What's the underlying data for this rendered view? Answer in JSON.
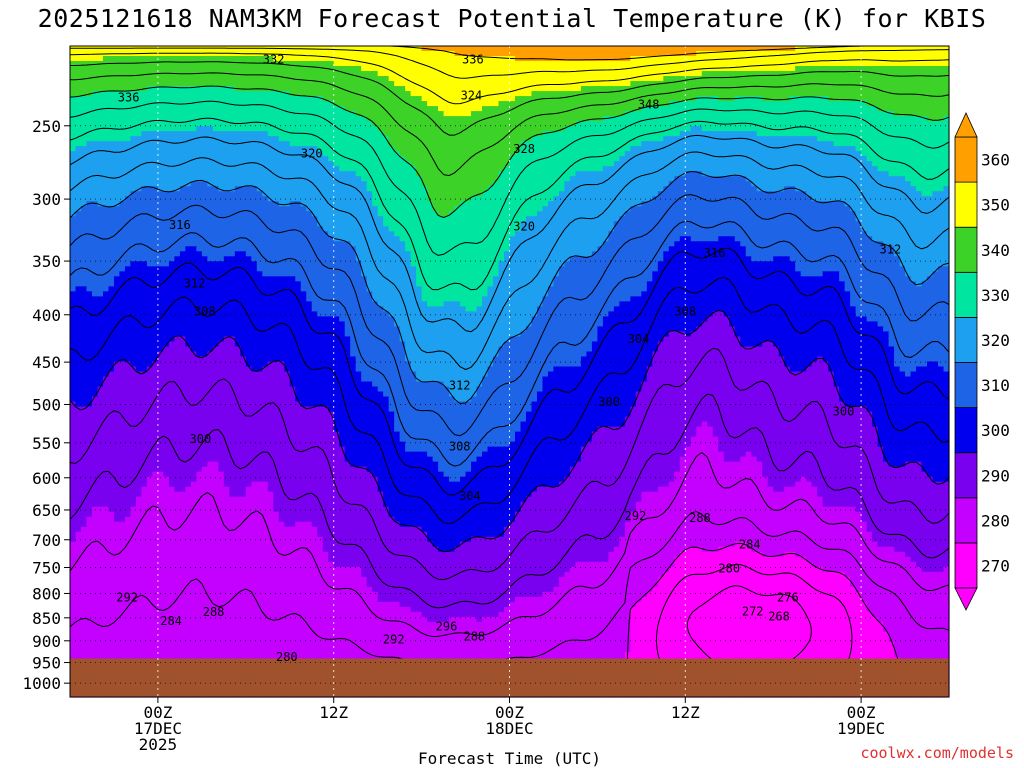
{
  "chart_data": {
    "type": "contour",
    "title": "2025121618 NAM3KM Forecast Potential Temperature (K) for KBIS",
    "xlabel": "Forecast Time (UTC)",
    "ylabel": "",
    "y_axis_pressure_hpa": [
      250,
      300,
      350,
      400,
      450,
      500,
      550,
      600,
      650,
      700,
      750,
      800,
      850,
      900,
      950,
      1000
    ],
    "y_range": [
      205,
      1035
    ],
    "x_tick_labels": [
      {
        "line1": "00Z",
        "line2": "17DEC",
        "line3": "2025"
      },
      {
        "line1": "12Z",
        "line2": "",
        "line3": ""
      },
      {
        "line1": "00Z",
        "line2": "18DEC",
        "line3": ""
      },
      {
        "line1": "12Z",
        "line2": "",
        "line3": ""
      },
      {
        "line1": "00Z",
        "line2": "19DEC",
        "line3": ""
      }
    ],
    "x_hours_from_start": [
      6,
      18,
      30,
      42,
      54
    ],
    "x_range_hours": [
      0,
      60
    ],
    "colorbar": {
      "levels": [
        270,
        280,
        290,
        300,
        310,
        320,
        330,
        340,
        350,
        360
      ],
      "labels": [
        "270",
        "280",
        "290",
        "300",
        "310",
        "320",
        "330",
        "340",
        "350",
        "360"
      ],
      "colors": [
        "#ff00ff",
        "#c400ff",
        "#7a00f0",
        "#0000ee",
        "#1e64e6",
        "#1ea0f0",
        "#00e6a0",
        "#3cd228",
        "#ffff00",
        "#ffa000"
      ],
      "extend": "both"
    },
    "ground_color": "#a0522d",
    "contour_labels": [
      {
        "text": "332",
        "hour": 13.9,
        "p": 212
      },
      {
        "text": "336",
        "hour": 27.5,
        "p": 212
      },
      {
        "text": "336",
        "hour": 4,
        "p": 233
      },
      {
        "text": "324",
        "hour": 27.4,
        "p": 232
      },
      {
        "text": "348",
        "hour": 39.5,
        "p": 237
      },
      {
        "text": "328",
        "hour": 31,
        "p": 265
      },
      {
        "text": "320",
        "hour": 16.5,
        "p": 268
      },
      {
        "text": "316",
        "hour": 7.5,
        "p": 320
      },
      {
        "text": "320",
        "hour": 31,
        "p": 321
      },
      {
        "text": "316",
        "hour": 44,
        "p": 343
      },
      {
        "text": "312",
        "hour": 56,
        "p": 340
      },
      {
        "text": "312",
        "hour": 8.5,
        "p": 370
      },
      {
        "text": "308",
        "hour": 9.2,
        "p": 397
      },
      {
        "text": "308",
        "hour": 42,
        "p": 397
      },
      {
        "text": "304",
        "hour": 38.8,
        "p": 425
      },
      {
        "text": "312",
        "hour": 26.6,
        "p": 477
      },
      {
        "text": "300",
        "hour": 36.8,
        "p": 497
      },
      {
        "text": "300",
        "hour": 52.8,
        "p": 509
      },
      {
        "text": "300",
        "hour": 8.9,
        "p": 545
      },
      {
        "text": "308",
        "hour": 26.6,
        "p": 555
      },
      {
        "text": "304",
        "hour": 27.3,
        "p": 628
      },
      {
        "text": "292",
        "hour": 38.6,
        "p": 660
      },
      {
        "text": "288",
        "hour": 43,
        "p": 663
      },
      {
        "text": "284",
        "hour": 46.4,
        "p": 708
      },
      {
        "text": "280",
        "hour": 45,
        "p": 752
      },
      {
        "text": "292",
        "hour": 3.9,
        "p": 808
      },
      {
        "text": "276",
        "hour": 49,
        "p": 808
      },
      {
        "text": "288",
        "hour": 9.8,
        "p": 838
      },
      {
        "text": "272",
        "hour": 46.6,
        "p": 837
      },
      {
        "text": "268",
        "hour": 48.4,
        "p": 847
      },
      {
        "text": "284",
        "hour": 6.9,
        "p": 857
      },
      {
        "text": "296",
        "hour": 25.7,
        "p": 868
      },
      {
        "text": "288",
        "hour": 27.6,
        "p": 890
      },
      {
        "text": "292",
        "hour": 22.1,
        "p": 897
      },
      {
        "text": "280",
        "hour": 14.8,
        "p": 937
      }
    ],
    "note_bands_k": [
      270,
      280,
      290,
      300,
      310,
      320,
      330,
      340,
      350,
      360
    ]
  },
  "credit": "coolwx.com/models"
}
